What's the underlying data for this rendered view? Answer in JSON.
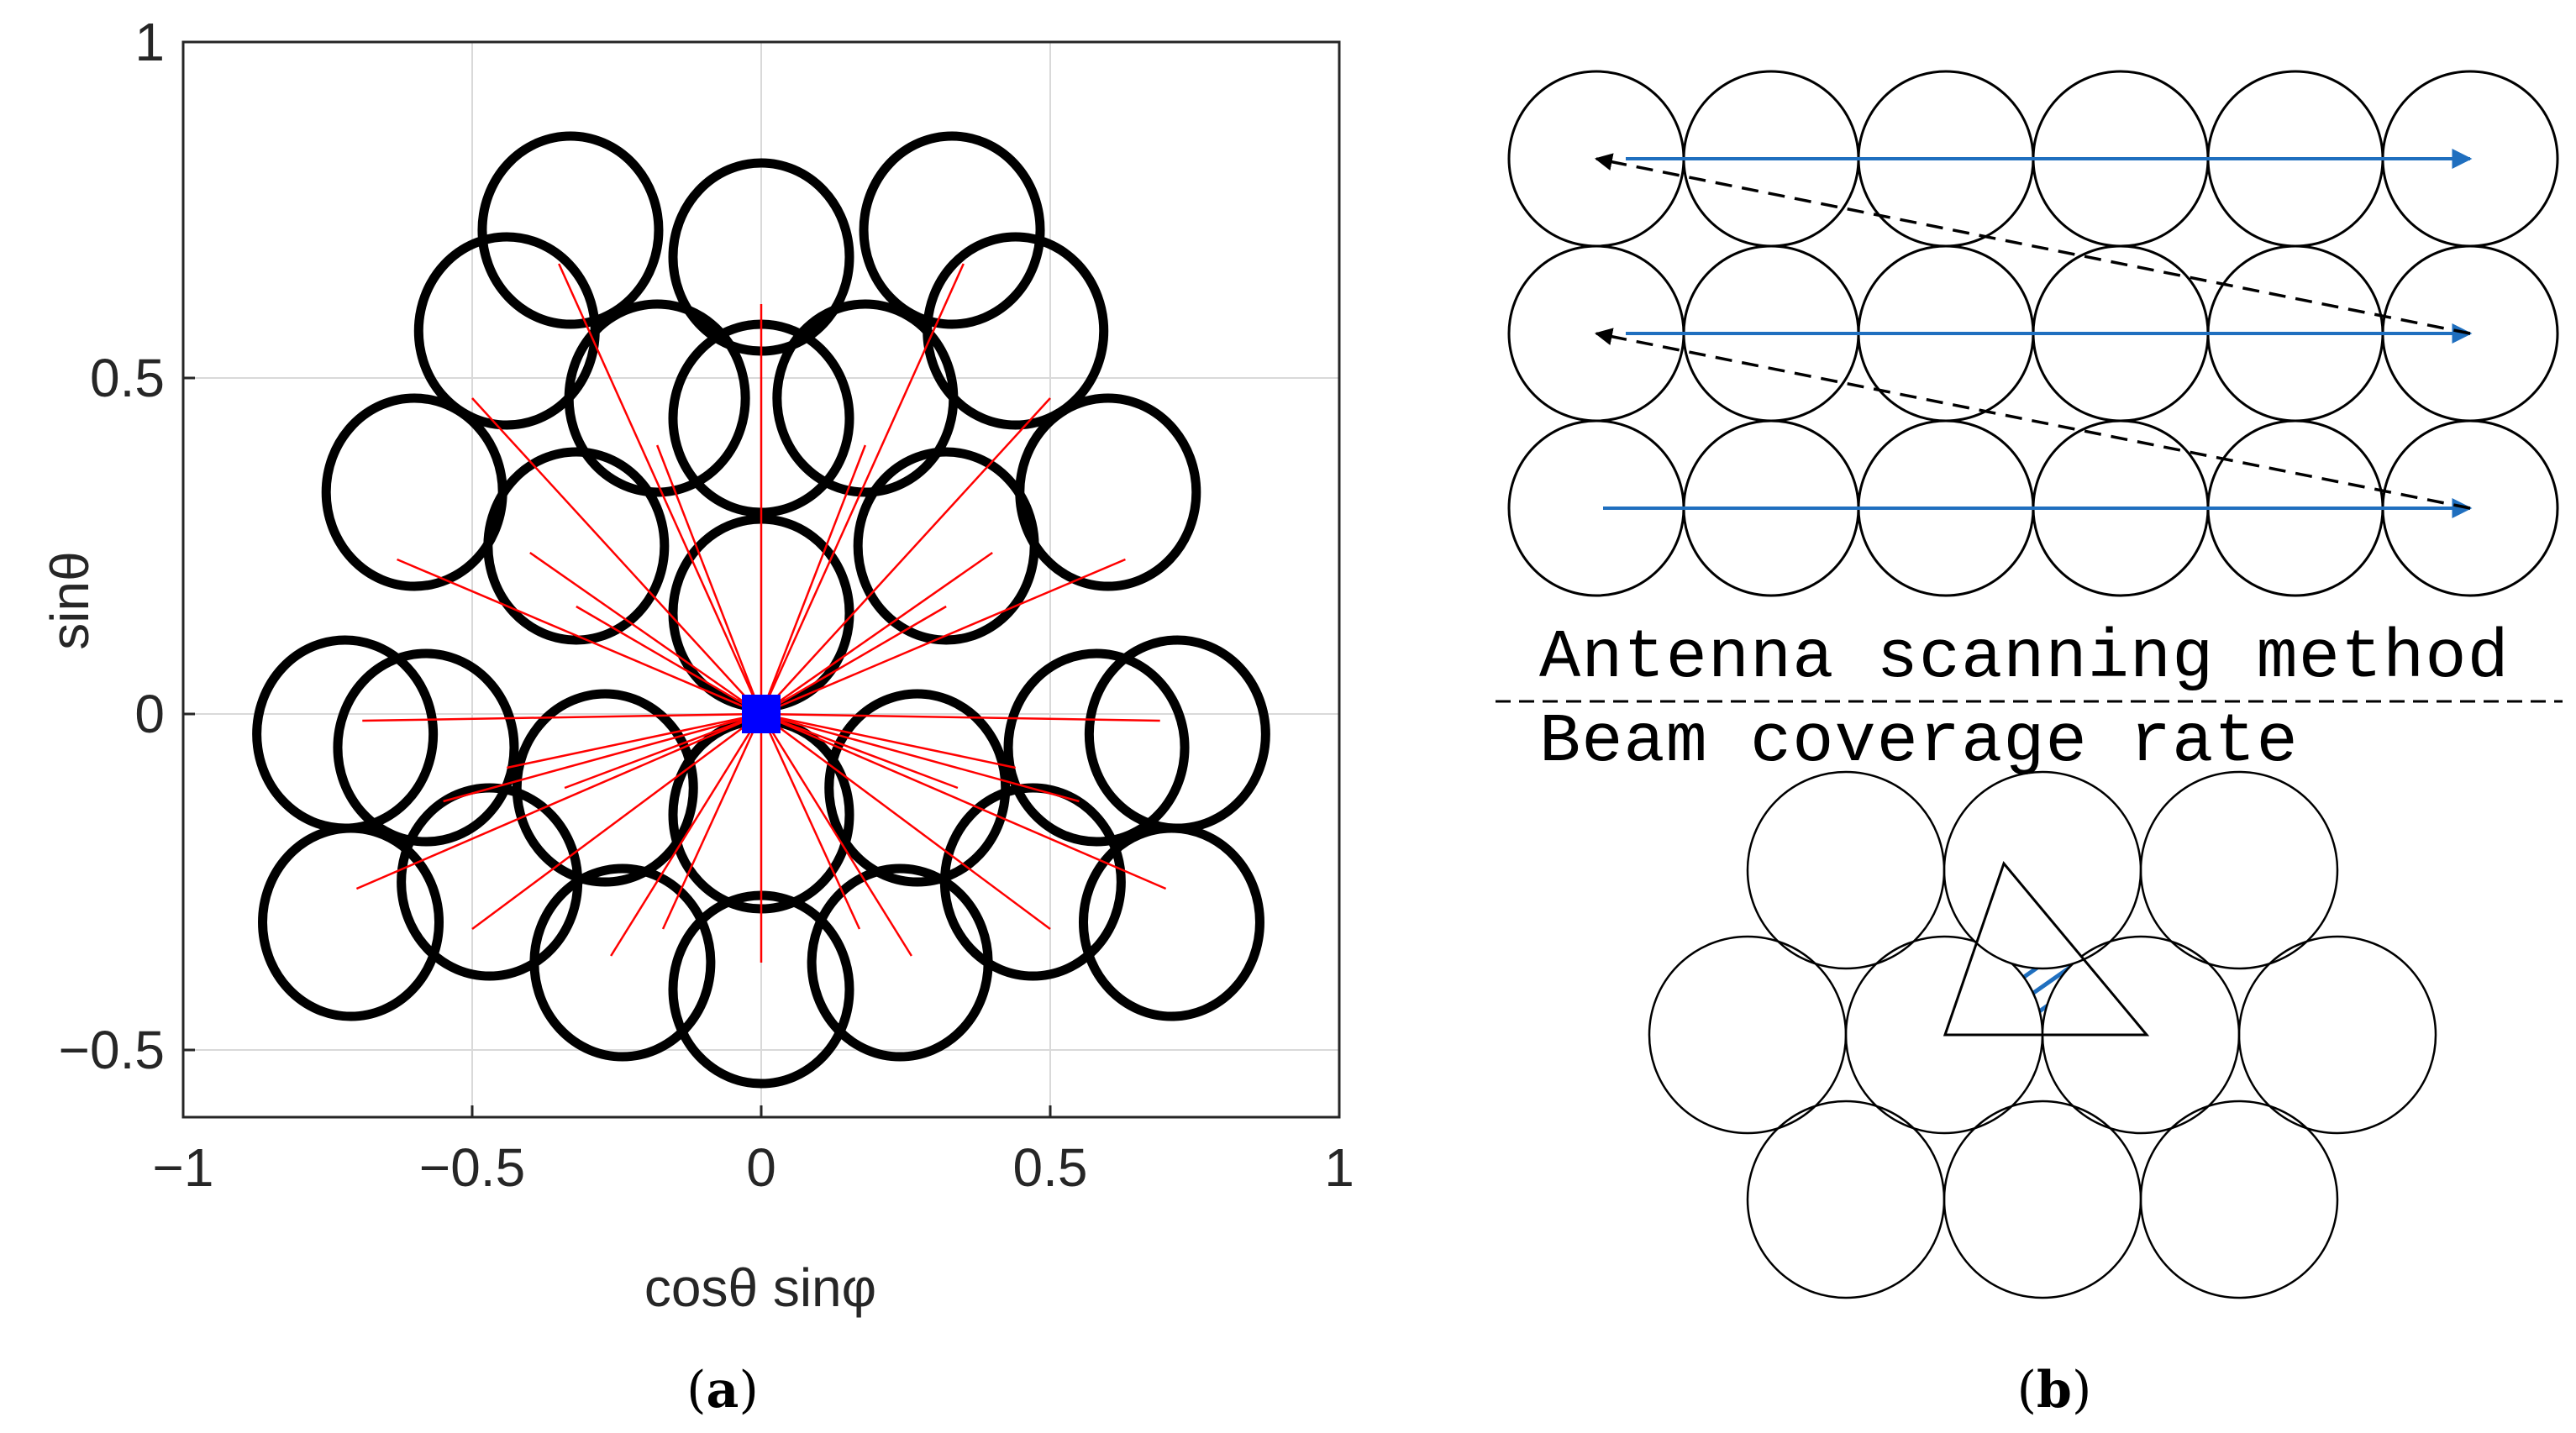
{
  "panel_a": {
    "caption": {
      "open": "(",
      "letter": "a",
      "close": ")"
    },
    "colors": {
      "beam": "#000000",
      "ray": "#ff0000",
      "marker": "#0000ff",
      "grid": "#d9d9d9",
      "axis": "#262626"
    }
  },
  "panel_b": {
    "caption": {
      "open": "(",
      "letter": "b",
      "close": ")"
    },
    "top_label": "Antenna scanning method",
    "bottom_label": "Beam coverage rate",
    "grid_rows": 3,
    "grid_cols": 6,
    "hex_rows": [
      3,
      4,
      3
    ],
    "colors": {
      "arrow": "#1f6fbf",
      "dashed": "#000000",
      "hatch": "#1f6fbf"
    }
  },
  "chart_data": {
    "type": "scatter",
    "title": "",
    "xlabel": "cosθ sinφ",
    "ylabel": "sinθ",
    "xlim": [
      -1,
      1
    ],
    "ylim": [
      -0.6,
      1
    ],
    "xticks": [
      -1,
      -0.5,
      0,
      0.5,
      1
    ],
    "xtick_labels": [
      "−1",
      "−0.5",
      "0",
      "0.5",
      "1"
    ],
    "yticks": [
      -0.5,
      0,
      0.5,
      1
    ],
    "ytick_labels": [
      "−0.5",
      "0",
      "0.5",
      "1"
    ],
    "grid": true,
    "origin_marker": {
      "x": 0,
      "y": 0
    },
    "beam_centers": [
      {
        "x": 0,
        "y": 0.15
      },
      {
        "x": 0,
        "y": -0.15
      },
      {
        "x": 0,
        "y": 0.44
      },
      {
        "x": 0,
        "y": -0.41
      },
      {
        "x": 0,
        "y": 0.68
      },
      {
        "x": -0.33,
        "y": 0.72
      },
      {
        "x": 0.33,
        "y": 0.72
      },
      {
        "x": -0.18,
        "y": 0.47
      },
      {
        "x": 0.18,
        "y": 0.47
      },
      {
        "x": -0.32,
        "y": 0.25
      },
      {
        "x": 0.32,
        "y": 0.25
      },
      {
        "x": -0.44,
        "y": 0.57
      },
      {
        "x": 0.44,
        "y": 0.57
      },
      {
        "x": -0.6,
        "y": 0.33
      },
      {
        "x": 0.6,
        "y": 0.33
      },
      {
        "x": -0.27,
        "y": -0.11
      },
      {
        "x": 0.27,
        "y": -0.11
      },
      {
        "x": -0.24,
        "y": -0.37
      },
      {
        "x": 0.24,
        "y": -0.37
      },
      {
        "x": -0.47,
        "y": -0.25
      },
      {
        "x": 0.47,
        "y": -0.25
      },
      {
        "x": -0.58,
        "y": -0.05
      },
      {
        "x": 0.58,
        "y": -0.05
      },
      {
        "x": -0.72,
        "y": -0.03
      },
      {
        "x": 0.72,
        "y": -0.03
      },
      {
        "x": -0.71,
        "y": -0.31
      },
      {
        "x": 0.71,
        "y": -0.31
      }
    ],
    "ray_endpoints": [
      {
        "x": 0,
        "y": 0.61
      },
      {
        "x": 0,
        "y": -0.37
      },
      {
        "x": -0.35,
        "y": 0.67
      },
      {
        "x": 0.35,
        "y": 0.67
      },
      {
        "x": -0.18,
        "y": 0.4
      },
      {
        "x": 0.18,
        "y": 0.4
      },
      {
        "x": -0.5,
        "y": 0.47
      },
      {
        "x": 0.5,
        "y": 0.47
      },
      {
        "x": -0.4,
        "y": 0.24
      },
      {
        "x": 0.4,
        "y": 0.24
      },
      {
        "x": -0.63,
        "y": 0.23
      },
      {
        "x": 0.63,
        "y": 0.23
      },
      {
        "x": -0.32,
        "y": 0.16
      },
      {
        "x": 0.32,
        "y": 0.16
      },
      {
        "x": -0.69,
        "y": -0.01
      },
      {
        "x": 0.69,
        "y": -0.01
      },
      {
        "x": -0.44,
        "y": -0.08
      },
      {
        "x": 0.44,
        "y": -0.08
      },
      {
        "x": -0.34,
        "y": -0.11
      },
      {
        "x": 0.34,
        "y": -0.11
      },
      {
        "x": -0.7,
        "y": -0.26
      },
      {
        "x": 0.7,
        "y": -0.26
      },
      {
        "x": -0.5,
        "y": -0.32
      },
      {
        "x": 0.5,
        "y": -0.32
      },
      {
        "x": -0.26,
        "y": -0.36
      },
      {
        "x": 0.26,
        "y": -0.36
      },
      {
        "x": -0.17,
        "y": -0.32
      },
      {
        "x": 0.17,
        "y": -0.32
      },
      {
        "x": -0.55,
        "y": -0.13
      },
      {
        "x": 0.55,
        "y": -0.13
      }
    ]
  }
}
